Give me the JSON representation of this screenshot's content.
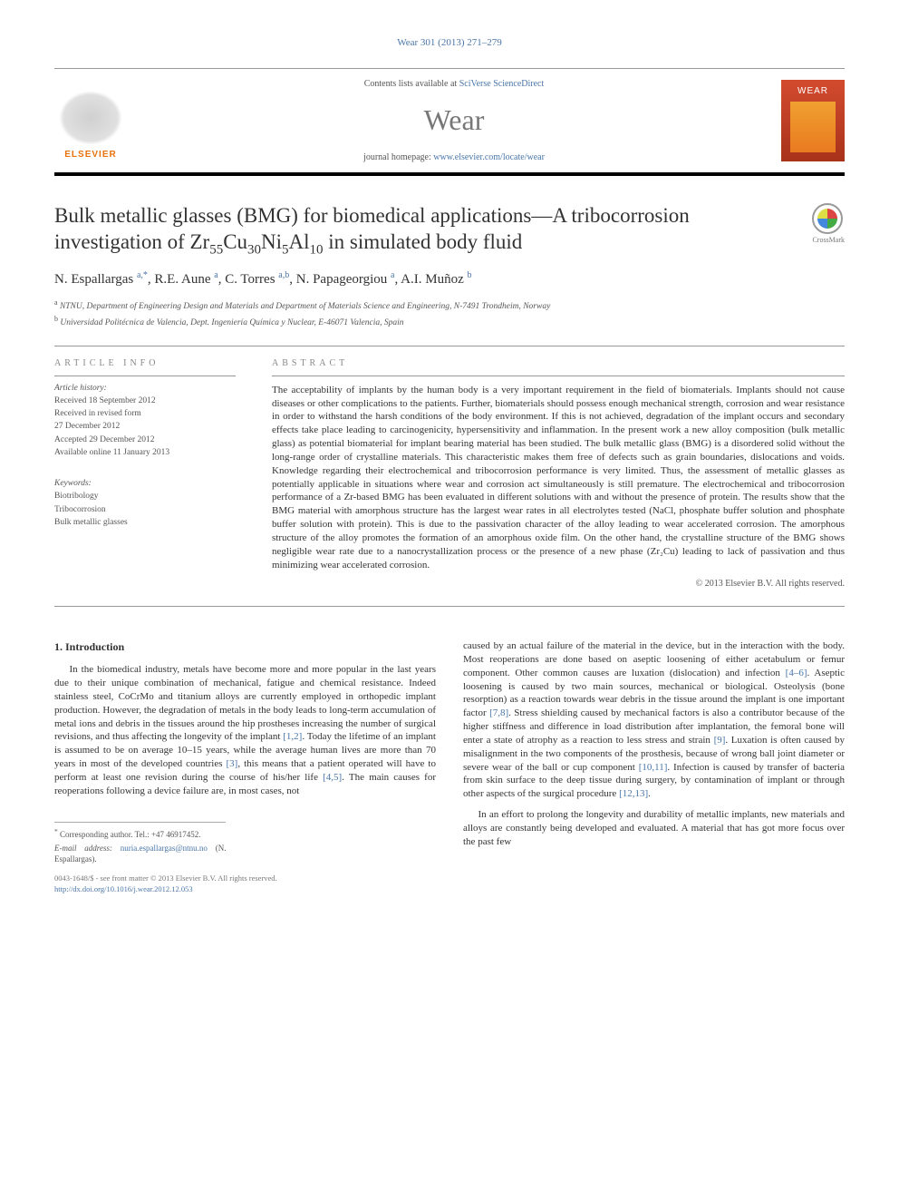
{
  "citation": "Wear 301 (2013) 271–279",
  "contents_prefix": "Contents lists available at ",
  "contents_link_text": "SciVerse ScienceDirect",
  "journal_name": "Wear",
  "homepage_prefix": "journal homepage: ",
  "homepage_link_text": "www.elsevier.com/locate/wear",
  "elsevier_label": "ELSEVIER",
  "crossmark_label": "CrossMark",
  "title_html": "Bulk metallic glasses (BMG) for biomedical applications—A tribocorrosion investigation of Zr<sub>55</sub>Cu<sub>30</sub>Ni<sub>5</sub>Al<sub>10</sub> in simulated body fluid",
  "authors_html": "N. Espallargas <sup><a>a,</a></sup><sup><a>*</a></sup>, R.E. Aune <sup><a>a</a></sup>, C. Torres <sup><a>a,b</a></sup>, N. Papageorgiou <sup><a>a</a></sup>, A.I. Muñoz <sup><a>b</a></sup>",
  "affiliations": [
    {
      "sup": "a",
      "text": "NTNU, Department of Engineering Design and Materials and Department of Materials Science and Engineering, N-7491 Trondheim, Norway"
    },
    {
      "sup": "b",
      "text": "Universidad Politécnica de Valencia, Dept. Ingeniería Química y Nuclear, E-46071 Valencia, Spain"
    }
  ],
  "article_info_label": "article info",
  "abstract_label": "abstract",
  "history_label": "Article history:",
  "history": [
    "Received 18 September 2012",
    "Received in revised form",
    "27 December 2012",
    "Accepted 29 December 2012",
    "Available online 11 January 2013"
  ],
  "keywords_label": "Keywords:",
  "keywords": [
    "Biotribology",
    "Tribocorrosion",
    "Bulk metallic glasses"
  ],
  "abstract_text": "The acceptability of implants by the human body is a very important requirement in the field of biomaterials. Implants should not cause diseases or other complications to the patients. Further, biomaterials should possess enough mechanical strength, corrosion and wear resistance in order to withstand the harsh conditions of the body environment. If this is not achieved, degradation of the implant occurs and secondary effects take place leading to carcinogenicity, hypersensitivity and inflammation. In the present work a new alloy composition (bulk metallic glass) as potential biomaterial for implant bearing material has been studied. The bulk metallic glass (BMG) is a disordered solid without the long-range order of crystalline materials. This characteristic makes them free of defects such as grain boundaries, dislocations and voids. Knowledge regarding their electrochemical and tribocorrosion performance is very limited. Thus, the assessment of metallic glasses as potentially applicable in situations where wear and corrosion act simultaneously is still premature. The electrochemical and tribocorrosion performance of a Zr-based BMG has been evaluated in different solutions with and without the presence of protein. The results show that the BMG material with amorphous structure has the largest wear rates in all electrolytes tested (NaCl, phosphate buffer solution and phosphate buffer solution with protein). This is due to the passivation character of the alloy leading to wear accelerated corrosion. The amorphous structure of the alloy promotes the formation of an amorphous oxide film. On the other hand, the crystalline structure of the BMG shows negligible wear rate due to a nanocrystallization process or the presence of a new phase (Zr₂Cu) leading to lack of passivation and thus minimizing wear accelerated corrosion.",
  "copyright": "© 2013 Elsevier B.V. All rights reserved.",
  "section1_heading": "1.  Introduction",
  "col1_p1_html": "In the biomedical industry, metals have become more and more popular in the last years due to their unique combination of mechanical, fatigue and chemical resistance. Indeed stainless steel, CoCrMo and titanium alloys are currently employed in orthopedic implant production. However, the degradation of metals in the body leads to long-term accumulation of metal ions and debris in the tissues around the hip prostheses increasing the number of surgical revisions, and thus affecting the longevity of the implant <a>[1,2]</a>. Today the lifetime of an implant is assumed to be on average 10–15 years, while the average human lives are more than 70 years in most of the developed countries <a>[3]</a>, this means that a patient operated will have to perform at least one revision during the course of his/her life <a>[4,5]</a>. The main causes for reoperations following a device failure are, in most cases, not",
  "col2_p1_html": "caused by an actual failure of the material in the device, but in the interaction with the body. Most reoperations are done based on aseptic loosening of either acetabulum or femur component. Other common causes are luxation (dislocation) and infection <a>[4–6]</a>. Aseptic loosening is caused by two main sources, mechanical or biological. Osteolysis (bone resorption) as a reaction towards wear debris in the tissue around the implant is one important factor <a>[7,8]</a>. Stress shielding caused by mechanical factors is also a contributor because of the higher stiffness and difference in load distribution after implantation, the femoral bone will enter a state of atrophy as a reaction to less stress and strain <a>[9]</a>. Luxation is often caused by misalignment in the two components of the prosthesis, because of wrong ball joint diameter or severe wear of the ball or cup component <a>[10,11]</a>. Infection is caused by transfer of bacteria from skin surface to the deep tissue during surgery, by contamination of implant or through other aspects of the surgical procedure <a>[12,13]</a>.",
  "col2_p2_html": "In an effort to prolong the longevity and durability of metallic implants, new materials and alloys are constantly being developed and evaluated. A material that has got more focus over the past few",
  "corr_author_html": "<sup>*</sup> Corresponding author. Tel.: +47 46917452.",
  "corr_email_label": "E-mail address:",
  "corr_email": "nuria.espallargas@ntnu.no",
  "corr_email_suffix": "(N. Espallargas).",
  "footer_line1": "0043-1648/$ - see front matter © 2013 Elsevier B.V. All rights reserved.",
  "footer_line2": "http://dx.doi.org/10.1016/j.wear.2012.12.053"
}
